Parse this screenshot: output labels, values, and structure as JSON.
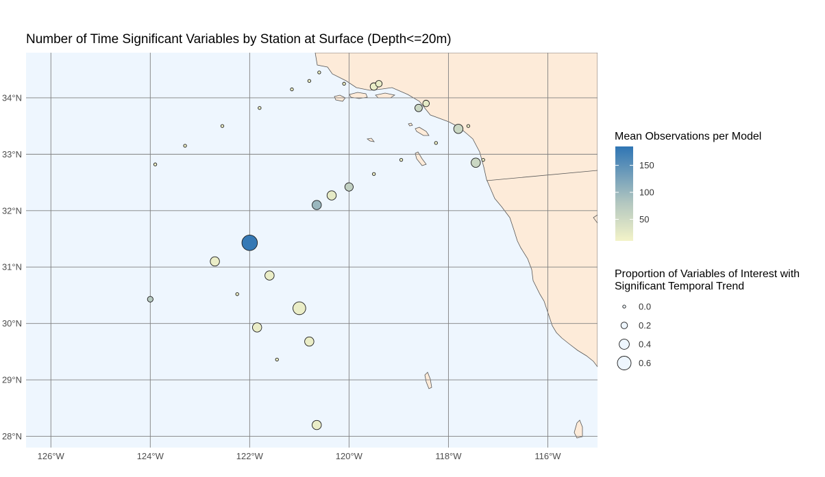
{
  "title": "Number of Time Significant Variables by Station at Surface (Depth<=20m)",
  "colors": {
    "ocean": "#eef6fe",
    "land": "#fdebd9",
    "grid": "#7f7f7f",
    "outline": "#555555",
    "scale_low": "#f3f3c8",
    "scale_mid": "#b3c7c0",
    "scale_high": "#2f75b4"
  },
  "x_axis": {
    "ticks": [
      -126,
      -124,
      -122,
      -120,
      -118,
      -116
    ],
    "labels": [
      "126°W",
      "124°W",
      "122°W",
      "120°W",
      "118°W",
      "116°W"
    ]
  },
  "y_axis": {
    "ticks": [
      28,
      29,
      30,
      31,
      32,
      33,
      34
    ],
    "labels": [
      "28°N",
      "29°N",
      "30°N",
      "31°N",
      "32°N",
      "33°N",
      "34°N"
    ]
  },
  "legend_color": {
    "title": "Mean Observations per Model",
    "ticks": [
      50,
      100,
      150
    ],
    "labels": [
      "50",
      "100",
      "150"
    ],
    "range": [
      10,
      185
    ]
  },
  "legend_size": {
    "title_line1": "Proportion of Variables of Interest with",
    "title_line2": "Significant Temporal Trend",
    "values": [
      0.0,
      0.2,
      0.4,
      0.6
    ],
    "labels": [
      "0.0",
      "0.2",
      "0.4",
      "0.6"
    ]
  },
  "chart_data": {
    "type": "scatter",
    "xlim": [
      -126.5,
      -115.0
    ],
    "ylim": [
      27.8,
      34.8
    ],
    "grid": true,
    "color_variable": "Mean Observations per Model",
    "size_variable": "Proportion of Variables of Interest with Significant Temporal Trend",
    "stations": [
      {
        "lon": -120.6,
        "lat": 34.45,
        "prop": 0.0,
        "obs": 15
      },
      {
        "lon": -120.8,
        "lat": 34.3,
        "prop": 0.0,
        "obs": 15
      },
      {
        "lon": -120.1,
        "lat": 34.25,
        "prop": 0.0,
        "obs": 15
      },
      {
        "lon": -121.15,
        "lat": 34.15,
        "prop": 0.0,
        "obs": 15
      },
      {
        "lon": -119.5,
        "lat": 34.2,
        "prop": 0.25,
        "obs": 20
      },
      {
        "lon": -119.4,
        "lat": 34.25,
        "prop": 0.2,
        "obs": 20
      },
      {
        "lon": -118.45,
        "lat": 33.9,
        "prop": 0.2,
        "obs": 25
      },
      {
        "lon": -118.6,
        "lat": 33.82,
        "prop": 0.25,
        "obs": 55
      },
      {
        "lon": -121.8,
        "lat": 33.82,
        "prop": 0.0,
        "obs": 15
      },
      {
        "lon": -122.55,
        "lat": 33.5,
        "prop": 0.0,
        "obs": 15
      },
      {
        "lon": -117.8,
        "lat": 33.45,
        "prop": 0.35,
        "obs": 55
      },
      {
        "lon": -117.6,
        "lat": 33.5,
        "prop": 0.0,
        "obs": 15
      },
      {
        "lon": -118.25,
        "lat": 33.2,
        "prop": 0.0,
        "obs": 15
      },
      {
        "lon": -123.3,
        "lat": 33.15,
        "prop": 0.0,
        "obs": 15
      },
      {
        "lon": -118.95,
        "lat": 32.9,
        "prop": 0.0,
        "obs": 15
      },
      {
        "lon": -117.45,
        "lat": 32.85,
        "prop": 0.35,
        "obs": 55
      },
      {
        "lon": -117.3,
        "lat": 32.9,
        "prop": 0.0,
        "obs": 15
      },
      {
        "lon": -123.9,
        "lat": 32.82,
        "prop": 0.0,
        "obs": 15
      },
      {
        "lon": -119.5,
        "lat": 32.65,
        "prop": 0.0,
        "obs": 15
      },
      {
        "lon": -120.0,
        "lat": 32.42,
        "prop": 0.3,
        "obs": 65
      },
      {
        "lon": -120.35,
        "lat": 32.27,
        "prop": 0.35,
        "obs": 25
      },
      {
        "lon": -120.65,
        "lat": 32.1,
        "prop": 0.35,
        "obs": 100
      },
      {
        "lon": -122.0,
        "lat": 31.43,
        "prop": 0.7,
        "obs": 180
      },
      {
        "lon": -122.7,
        "lat": 31.1,
        "prop": 0.35,
        "obs": 20
      },
      {
        "lon": -121.6,
        "lat": 30.85,
        "prop": 0.35,
        "obs": 20
      },
      {
        "lon": -122.25,
        "lat": 30.52,
        "prop": 0.0,
        "obs": 15
      },
      {
        "lon": -124.0,
        "lat": 30.43,
        "prop": 0.15,
        "obs": 75
      },
      {
        "lon": -121.0,
        "lat": 30.27,
        "prop": 0.55,
        "obs": 20
      },
      {
        "lon": -121.85,
        "lat": 29.93,
        "prop": 0.35,
        "obs": 20
      },
      {
        "lon": -120.8,
        "lat": 29.68,
        "prop": 0.35,
        "obs": 20
      },
      {
        "lon": -121.45,
        "lat": 29.36,
        "prop": 0.0,
        "obs": 15
      },
      {
        "lon": -120.65,
        "lat": 28.2,
        "prop": 0.35,
        "obs": 20
      }
    ]
  }
}
